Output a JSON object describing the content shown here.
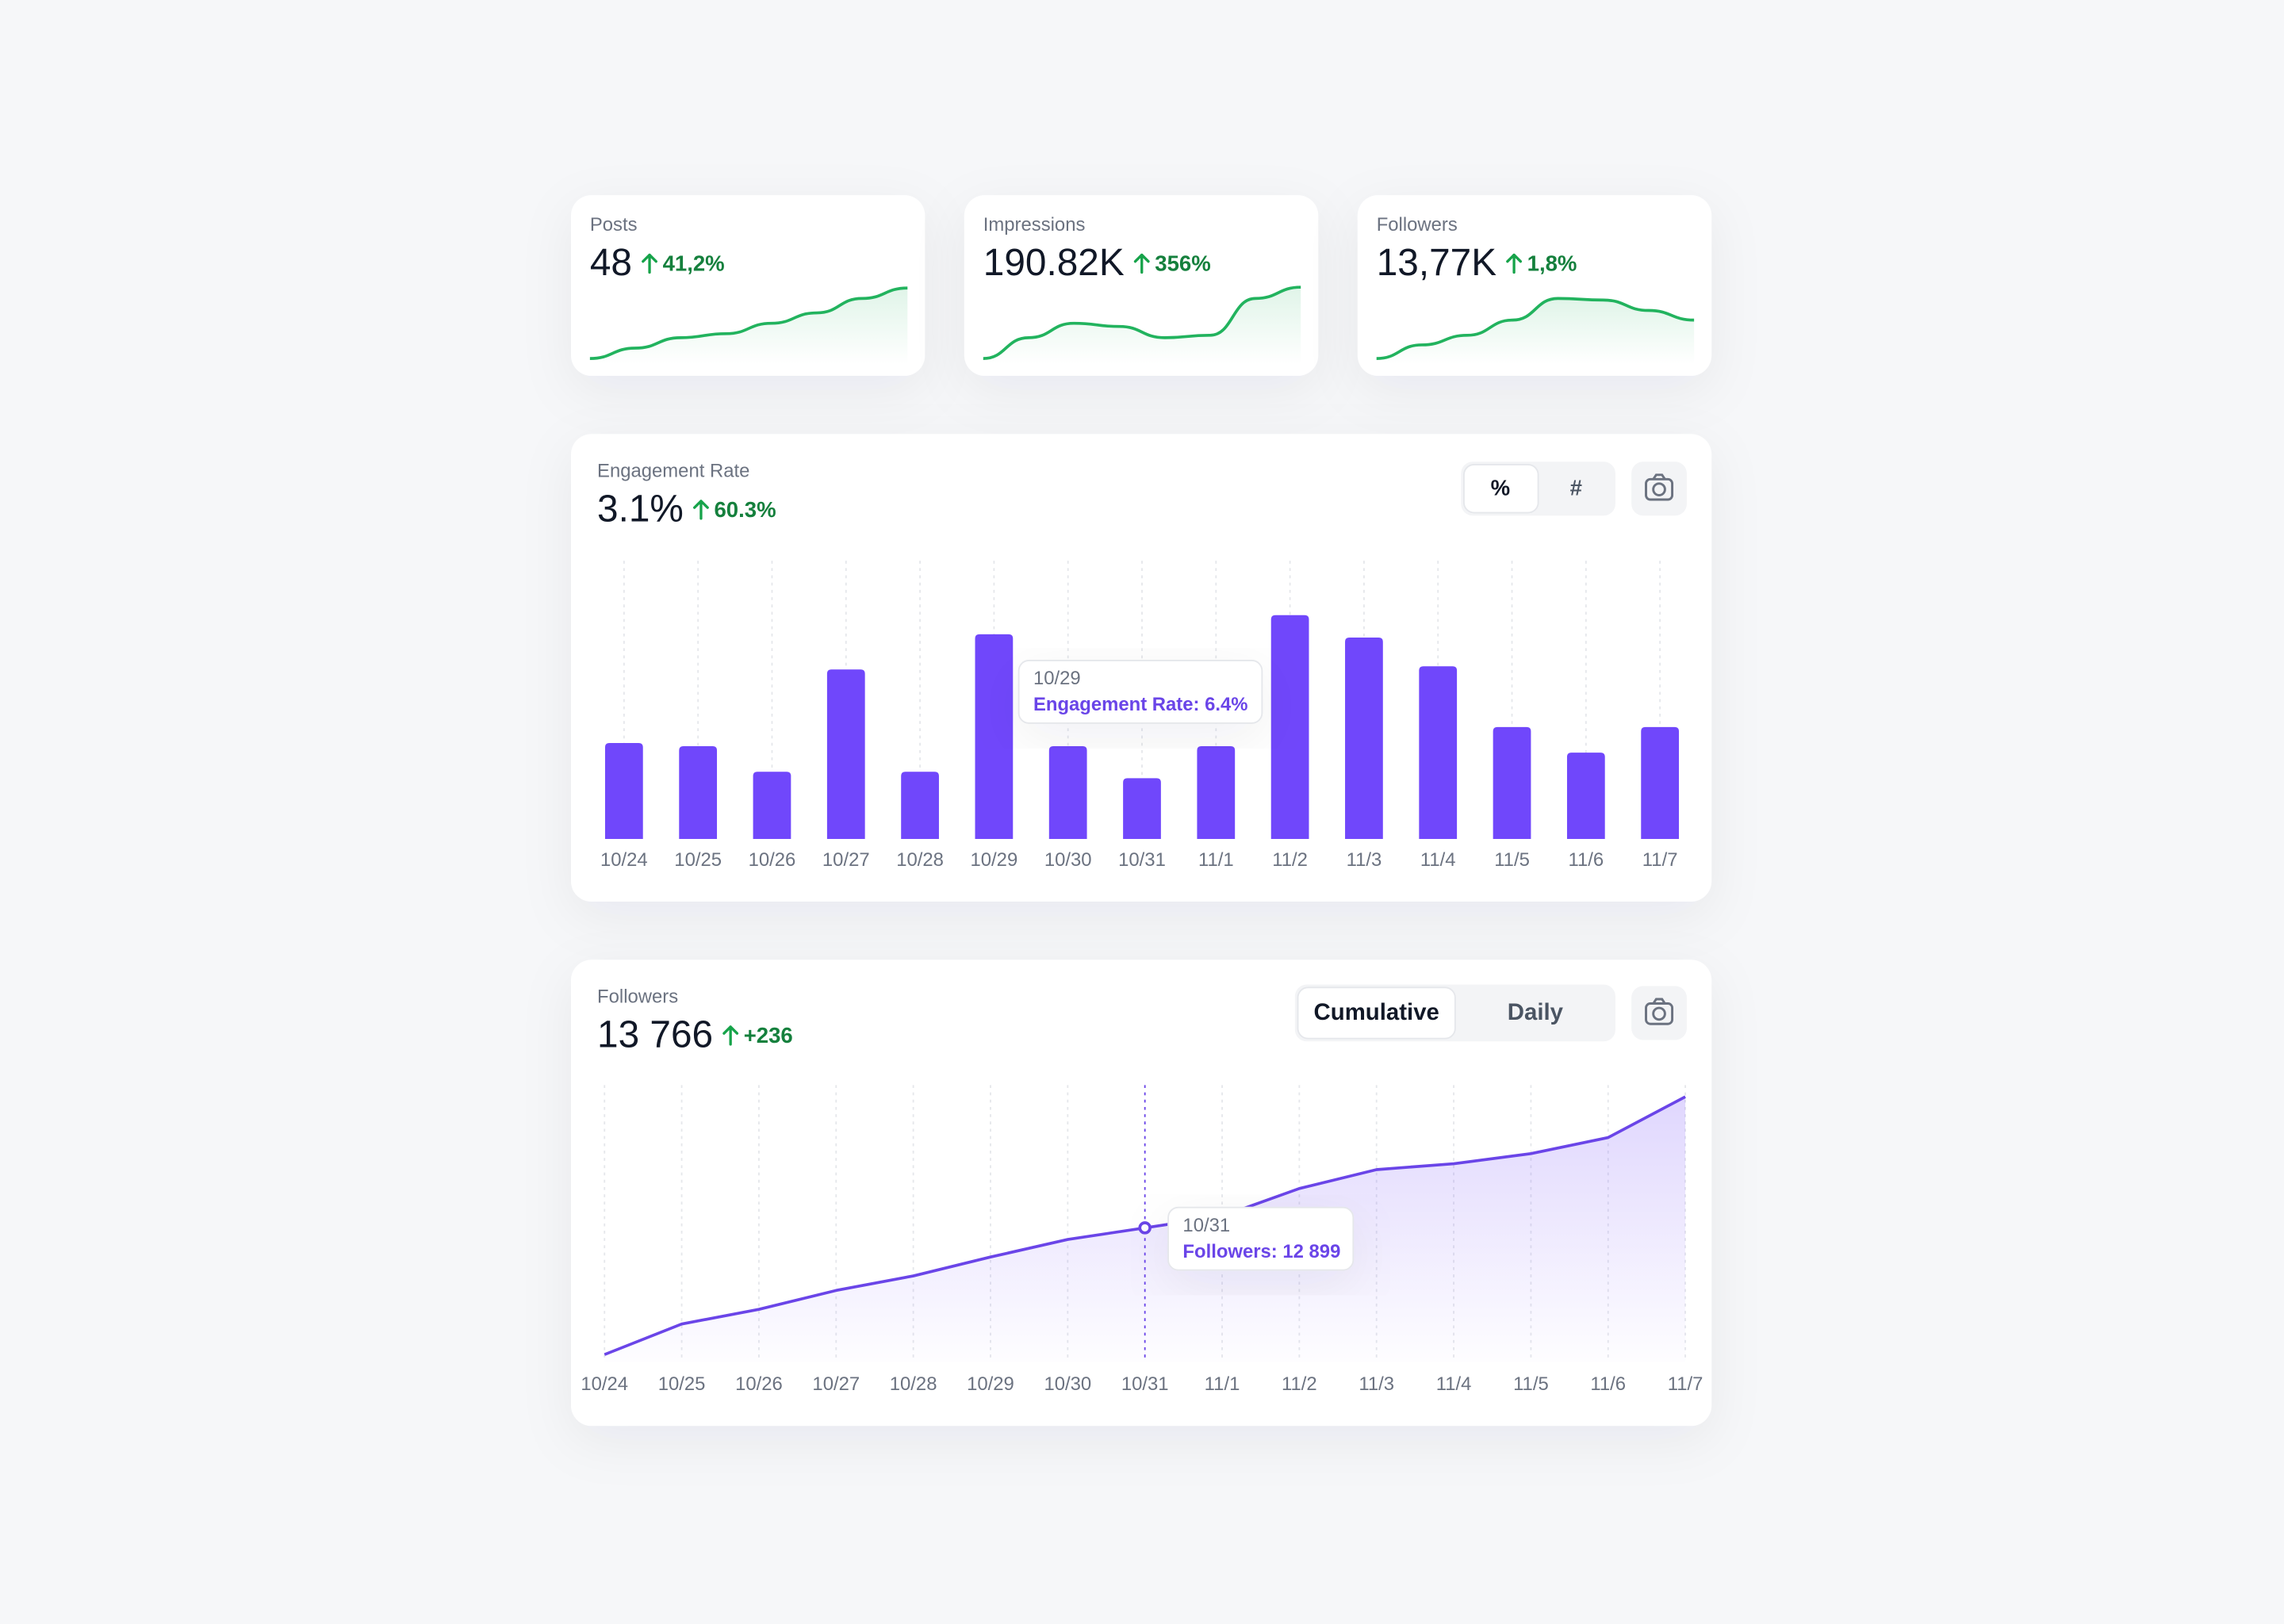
{
  "cards": [
    {
      "label": "Posts",
      "value": "48",
      "change": "41,2%",
      "sparkline": {
        "values": [
          7,
          20,
          33,
          38,
          51,
          64,
          82,
          95
        ],
        "ylim": [
          0,
          100
        ]
      }
    },
    {
      "label": "Impressions",
      "value": "190.82K",
      "change": "356%",
      "sparkline": {
        "values": [
          7,
          33,
          51,
          47,
          33,
          36,
          82,
          96
        ],
        "ylim": [
          0,
          100
        ]
      }
    },
    {
      "label": "Followers",
      "value": "13,77K",
      "change": "1,8%",
      "sparkline": {
        "values": [
          7,
          24,
          36,
          55,
          82,
          80,
          67,
          55
        ],
        "ylim": [
          0,
          100
        ]
      }
    }
  ],
  "chart_data": [
    {
      "type": "bar",
      "title": "Engagement Rate",
      "value": "3.1%",
      "change": "60.3%",
      "buttons": [
        "%",
        "#"
      ],
      "categories": [
        "10/24",
        "10/25",
        "10/26",
        "10/27",
        "10/28",
        "10/29",
        "10/30",
        "10/31",
        "11/1",
        "11/2",
        "11/3",
        "11/4",
        "11/5",
        "11/6",
        "11/7"
      ],
      "values": [
        3.0,
        2.9,
        2.1,
        5.3,
        2.1,
        6.4,
        2.9,
        1.9,
        2.9,
        7.0,
        6.3,
        5.4,
        3.5,
        2.7,
        3.5
      ],
      "color": "#7047fb",
      "ylim": [
        0,
        8.7
      ],
      "tooltip": {
        "title": "10/29",
        "text": "Engagement Rate: 6.4%"
      }
    },
    {
      "type": "line",
      "title": "Followers",
      "value": "13 766",
      "change": "+236",
      "buttons": [
        "Cumulative",
        "Daily"
      ],
      "categories": [
        "10/24",
        "10/25",
        "10/26",
        "10/27",
        "10/28",
        "10/29",
        "10/30",
        "10/31",
        "11/1",
        "11/2",
        "11/3",
        "11/4",
        "11/5",
        "11/6",
        "11/7"
      ],
      "values": [
        12061,
        12263,
        12360,
        12485,
        12581,
        12706,
        12822,
        12899,
        12976,
        13159,
        13284,
        13323,
        13390,
        13496,
        13766
      ],
      "color": "#6a45e8",
      "ylim": [
        12013,
        13843
      ],
      "tooltip": {
        "title": "10/31",
        "text": "Followers: 12 899"
      }
    }
  ]
}
